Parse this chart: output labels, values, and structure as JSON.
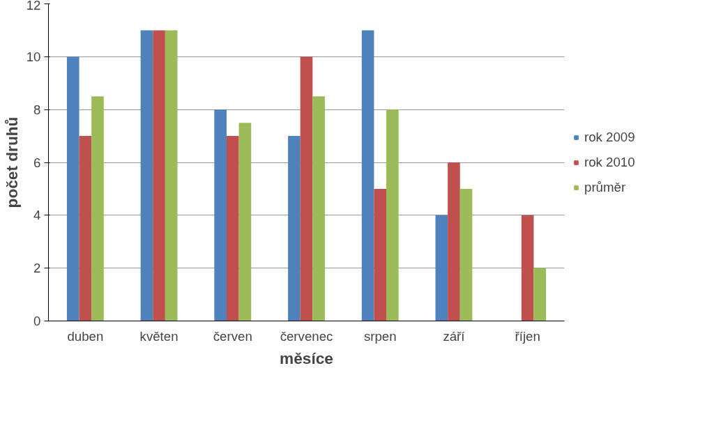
{
  "chart_data": {
    "type": "bar",
    "xlabel": "měsíce",
    "ylabel": "počet druhů",
    "categories": [
      "duben",
      "květen",
      "červen",
      "červenec",
      "srpen",
      "září",
      "říjen"
    ],
    "series": [
      {
        "name": "rok 2009",
        "color": "#4f81bd",
        "values": [
          10,
          11,
          8,
          7,
          11,
          4,
          0
        ]
      },
      {
        "name": "rok 2010",
        "color": "#c0504d",
        "values": [
          7,
          11,
          7,
          10,
          5,
          6,
          4
        ]
      },
      {
        "name": "průměr",
        "color": "#9bbb59",
        "values": [
          8.5,
          11,
          7.5,
          8.5,
          8,
          5,
          2
        ]
      }
    ],
    "ylim": [
      0,
      12
    ],
    "yticks": [
      0,
      2,
      4,
      6,
      8,
      10,
      12
    ],
    "grid": "y",
    "legend": "right"
  }
}
